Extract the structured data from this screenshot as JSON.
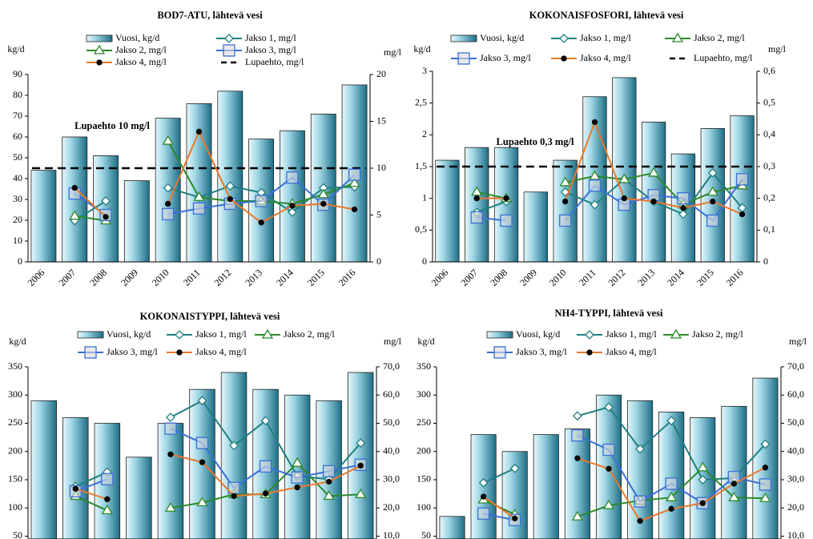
{
  "chart_data": [
    {
      "type": "bar_line",
      "title": "BOD7-ATU, lähtevä vesi",
      "y_label": "kg/d",
      "y2_label": "mg/l",
      "categories": [
        "2006",
        "2007",
        "2008",
        "2009",
        "2010",
        "2011",
        "2012",
        "2013",
        "2014",
        "2015",
        "2016"
      ],
      "series": [
        {
          "name": "Vuosi, kg/d",
          "type": "bar",
          "color": "#4bacc6",
          "values": [
            44,
            60,
            51,
            39,
            69,
            76,
            82,
            59,
            63,
            71,
            85
          ]
        },
        {
          "name": "Jakso 1, mg/l",
          "type": "line",
          "axis": "y2",
          "marker": "diamond",
          "color": "#1f7f7f",
          "values": [
            null,
            4.4,
            6.5,
            null,
            7.9,
            6.9,
            8.1,
            7.4,
            5.3,
            7.9,
            8.0
          ]
        },
        {
          "name": "Jakso 2, mg/l",
          "type": "line",
          "axis": "y2",
          "marker": "triangle",
          "color": "#2a8a2a",
          "values": [
            null,
            4.9,
            4.4,
            null,
            12.9,
            6.9,
            6.5,
            6.5,
            6.2,
            7.2,
            8.4
          ]
        },
        {
          "name": "Jakso 3, mg/l",
          "type": "line",
          "axis": "y2",
          "marker": "square",
          "color": "#3a6fd8",
          "values": [
            null,
            7.3,
            5.0,
            null,
            5.1,
            5.7,
            6.2,
            6.5,
            9.0,
            6.1,
            9.3
          ]
        },
        {
          "name": "Jakso 4, mg/l",
          "type": "line",
          "axis": "y2",
          "marker": "circle",
          "marker_color": "#000000",
          "color": "#e8792a",
          "values": [
            null,
            7.9,
            4.8,
            null,
            6.2,
            13.9,
            6.7,
            4.2,
            6.0,
            6.2,
            5.6
          ]
        }
      ],
      "limit": {
        "name": "Lupaehto, mg/l",
        "axis": "y2",
        "value": 10,
        "color": "#000000"
      },
      "annotation": "Lupaehto 10 mg/l",
      "ylim": [
        0,
        90
      ],
      "yticks": [
        0,
        10,
        20,
        30,
        40,
        50,
        60,
        70,
        80,
        90
      ],
      "y2lim": [
        0,
        20
      ],
      "y2ticks": [
        0,
        5,
        10,
        15,
        20
      ]
    },
    {
      "type": "bar_line",
      "title": "KOKONAISFOSFORI, lähtevä vesi",
      "y_label": "kg/d",
      "y2_label": "mg/l",
      "categories": [
        "2006",
        "2007",
        "2008",
        "2009",
        "2010",
        "2011",
        "2012",
        "2013",
        "2014",
        "2015",
        "2016"
      ],
      "series": [
        {
          "name": "Vuosi, kg/d",
          "type": "bar",
          "color": "#4bacc6",
          "values": [
            1.6,
            1.8,
            1.8,
            1.1,
            1.6,
            2.6,
            2.9,
            2.2,
            1.7,
            2.1,
            2.3
          ]
        },
        {
          "name": "Jakso 1, mg/l",
          "type": "line",
          "axis": "y2",
          "marker": "diamond",
          "color": "#1f7f7f",
          "values": [
            null,
            0.156,
            0.19,
            null,
            0.22,
            0.18,
            0.26,
            0.19,
            0.15,
            0.28,
            0.17
          ]
        },
        {
          "name": "Jakso 2, mg/l",
          "type": "line",
          "axis": "y2",
          "marker": "triangle",
          "color": "#2a8a2a",
          "values": [
            null,
            0.22,
            0.2,
            null,
            0.25,
            0.27,
            0.26,
            0.28,
            0.18,
            0.22,
            0.24
          ]
        },
        {
          "name": "Jakso 3, mg/l",
          "type": "line",
          "axis": "y2",
          "marker": "square",
          "color": "#3a6fd8",
          "values": [
            null,
            0.14,
            0.13,
            null,
            0.13,
            0.24,
            0.18,
            0.21,
            0.2,
            0.13,
            0.26
          ]
        },
        {
          "name": "Jakso 4, mg/l",
          "type": "line",
          "axis": "y2",
          "marker": "circle",
          "marker_color": "#000000",
          "color": "#e8792a",
          "values": [
            null,
            0.2,
            0.2,
            null,
            0.19,
            0.44,
            0.2,
            0.19,
            0.17,
            0.19,
            0.15
          ]
        }
      ],
      "limit": {
        "name": "Lupaehto, mg/l",
        "axis": "y2",
        "value": 0.3,
        "color": "#000000"
      },
      "annotation": "Lupaehto 0,3 mg/l",
      "ylim": [
        0,
        3
      ],
      "yticks": [
        0,
        {
          "value": 0.5,
          "label": "0,5"
        },
        1,
        {
          "value": 1.5,
          "label": "1,5"
        },
        2,
        {
          "value": 2.5,
          "label": "2,5"
        },
        3
      ],
      "y2lim": [
        0,
        0.6
      ],
      "y2ticks": [
        0,
        {
          "value": 0.1,
          "label": "0,1"
        },
        {
          "value": 0.2,
          "label": "0,2"
        },
        {
          "value": 0.3,
          "label": "0,3"
        },
        {
          "value": 0.4,
          "label": "0,4"
        },
        {
          "value": 0.5,
          "label": "0,5"
        },
        {
          "value": 0.6,
          "label": "0,6"
        }
      ]
    },
    {
      "type": "bar_line",
      "title": "KOKONAISTYPPI, lähtevä vesi",
      "y_label": "kg/d",
      "y2_label": "mg/l",
      "series": [
        {
          "name": "Vuosi, kg/d",
          "type": "bar",
          "color": "#4bacc6",
          "values": [
            290,
            260,
            250,
            190,
            250,
            310,
            340,
            310,
            300,
            290,
            340
          ]
        },
        {
          "name": "Jakso 1, mg/l",
          "type": "line",
          "axis": "y2",
          "marker": "diamond",
          "color": "#1f7f7f",
          "values": [
            null,
            27.6,
            32.7,
            null,
            52.1,
            58.0,
            42.1,
            50.9,
            31.3,
            30.2,
            43.0
          ]
        },
        {
          "name": "Jakso 2, mg/l",
          "type": "line",
          "axis": "y2",
          "marker": "triangle",
          "color": "#2a8a2a",
          "values": [
            null,
            24.2,
            19.1,
            null,
            20.0,
            21.9,
            24.8,
            24.8,
            35.9,
            24.2,
            24.8
          ]
        },
        {
          "name": "Jakso 3, mg/l",
          "type": "line",
          "axis": "y2",
          "marker": "square",
          "color": "#3a6fd8",
          "values": [
            null,
            25.9,
            30.2,
            null,
            48.1,
            43.0,
            27.1,
            34.7,
            30.8,
            33.0,
            35.3
          ]
        },
        {
          "name": "Jakso 4, mg/l",
          "type": "line",
          "axis": "y2",
          "marker": "circle",
          "marker_color": "#000000",
          "color": "#e8792a",
          "values": [
            null,
            26.8,
            23.1,
            null,
            39.0,
            36.2,
            24.2,
            25.1,
            27.3,
            29.3,
            35.0
          ]
        }
      ],
      "ylim": [
        45,
        350
      ],
      "yticks": [
        50,
        100,
        150,
        200,
        250,
        300,
        350
      ],
      "y2lim": [
        9,
        70
      ],
      "y2ticks": [
        {
          "value": 10,
          "label": "10,0"
        },
        {
          "value": 20,
          "label": "20,0"
        },
        {
          "value": 30,
          "label": "30,0"
        },
        {
          "value": 40,
          "label": "40,0"
        },
        {
          "value": 50,
          "label": "50,0"
        },
        {
          "value": 60,
          "label": "60,0"
        },
        {
          "value": 70,
          "label": "70,0"
        }
      ]
    },
    {
      "type": "bar_line",
      "title": "NH4-TYPPI, lähtevä vesi",
      "y_label": "kg/d",
      "y2_label": "mg/l",
      "series": [
        {
          "name": "Vuosi, kg/d",
          "type": "bar",
          "color": "#4bacc6",
          "values": [
            85,
            230,
            200,
            230,
            240,
            300,
            290,
            270,
            260,
            280,
            330
          ]
        },
        {
          "name": "Jakso 1, mg/l",
          "type": "line",
          "axis": "y2",
          "marker": "diamond",
          "color": "#1f7f7f",
          "values": [
            null,
            28.9,
            34.0,
            null,
            52.6,
            55.7,
            40.9,
            50.9,
            30.0,
            30.6,
            42.6
          ]
        },
        {
          "name": "Jakso 2, mg/l",
          "type": "line",
          "axis": "y2",
          "marker": "triangle",
          "color": "#2a8a2a",
          "values": [
            null,
            22.9,
            17.7,
            null,
            16.9,
            20.9,
            22.6,
            23.7,
            34.3,
            23.7,
            23.4
          ]
        },
        {
          "name": "Jakso 3, mg/l",
          "type": "line",
          "axis": "y2",
          "marker": "square",
          "color": "#3a6fd8",
          "values": [
            null,
            18.0,
            15.7,
            null,
            45.7,
            40.6,
            22.3,
            28.6,
            21.7,
            30.9,
            28.3
          ]
        },
        {
          "name": "Jakso 4, mg/l",
          "type": "line",
          "axis": "y2",
          "marker": "circle",
          "marker_color": "#000000",
          "color": "#e8792a",
          "values": [
            null,
            24.0,
            16.3,
            null,
            37.6,
            33.9,
            15.4,
            19.7,
            21.7,
            28.6,
            34.3
          ]
        }
      ],
      "ylim": [
        45,
        350
      ],
      "yticks": [
        50,
        100,
        150,
        200,
        250,
        300,
        350
      ],
      "y2lim": [
        9,
        70
      ],
      "y2ticks": [
        {
          "value": 10,
          "label": "10,0"
        },
        {
          "value": 20,
          "label": "20,0"
        },
        {
          "value": 30,
          "label": "30,0"
        },
        {
          "value": 40,
          "label": "40,0"
        },
        {
          "value": 50,
          "label": "50,0"
        },
        {
          "value": 60,
          "label": "60,0"
        },
        {
          "value": 70,
          "label": "70,0"
        }
      ]
    }
  ]
}
